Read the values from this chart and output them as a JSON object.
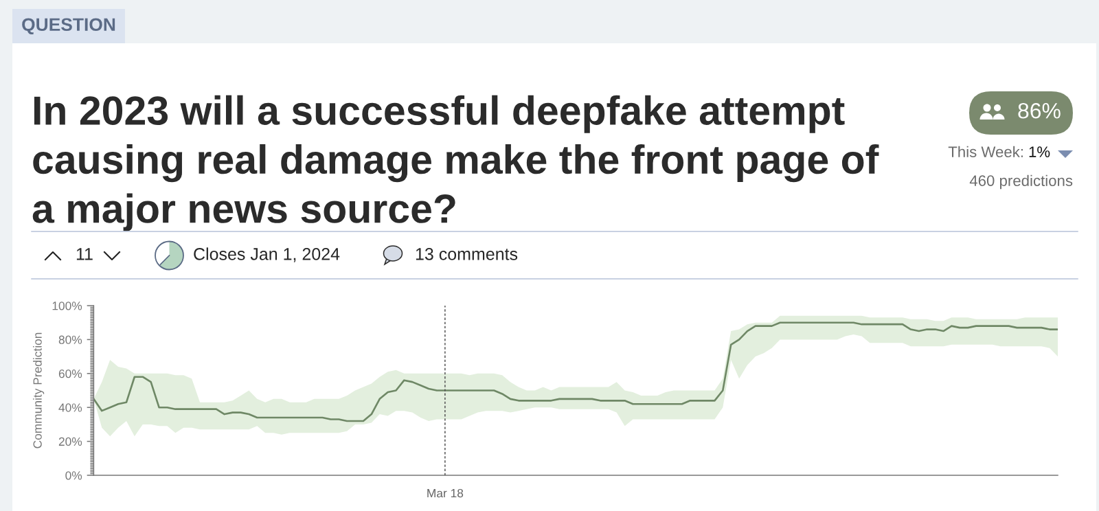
{
  "chart_data": {
    "type": "line",
    "title": "In 2023 will a successful deepfake attempt causing real damage make the front page of a major news source?",
    "ylabel": "Community Prediction",
    "annotations": [
      "QUESTION",
      "86%",
      "This Week:",
      "1%",
      "460 predictions",
      "11",
      "Closes Jan 1, 2024",
      "13 comments"
    ],
    "categories": [
      null,
      null,
      null,
      null,
      null,
      null,
      null,
      null,
      null,
      null,
      null,
      null,
      null,
      null,
      null,
      null,
      null,
      null,
      null,
      null,
      null,
      null,
      null,
      null,
      null,
      null,
      null,
      null,
      null,
      null,
      null,
      null,
      null,
      null,
      null,
      null,
      null,
      null,
      null,
      null,
      null,
      null,
      null,
      "Mar 18",
      null,
      null,
      null,
      null,
      null,
      null,
      null,
      null,
      null,
      null,
      null,
      null,
      null,
      null,
      null,
      null,
      null,
      null,
      null,
      null,
      null,
      null,
      null,
      null,
      null,
      null,
      null,
      null,
      null,
      null,
      null,
      null,
      null,
      null,
      null,
      null,
      null,
      null,
      null,
      null,
      null,
      null,
      null,
      null,
      null,
      null,
      null,
      null,
      null,
      null,
      null,
      null,
      null,
      null,
      null,
      null,
      null,
      null,
      null,
      null,
      null,
      null,
      null,
      null,
      null,
      null,
      null,
      null,
      null,
      null,
      null,
      null,
      null,
      null,
      null
    ],
    "series": [
      {
        "color": "#6f8866",
        "values": [
          45,
          38,
          40,
          42,
          43,
          58,
          58,
          55,
          40,
          40,
          39,
          39,
          39,
          39,
          39,
          39,
          36,
          37,
          37,
          36,
          34,
          34,
          34,
          34,
          34,
          34,
          34,
          34,
          34,
          33,
          33,
          32,
          32,
          32,
          36,
          45,
          49,
          50,
          56,
          55,
          53,
          51,
          50,
          50,
          50,
          50,
          50,
          50,
          50,
          50,
          48,
          45,
          44,
          44,
          44,
          44,
          44,
          45,
          45,
          45,
          45,
          45,
          44,
          44,
          44,
          44,
          42,
          42,
          42,
          42,
          42,
          42,
          42,
          44,
          44,
          44,
          44,
          50,
          77,
          80,
          85,
          88,
          88,
          88,
          90,
          90,
          90,
          90,
          90,
          90,
          90,
          90,
          90,
          90,
          89,
          89,
          89,
          89,
          89,
          89,
          86,
          85,
          86,
          86,
          85,
          88,
          87,
          87,
          88,
          88,
          88,
          88,
          88,
          87,
          87,
          87,
          87,
          86,
          86
        ],
        "lower": [
          45,
          28,
          23,
          28,
          32,
          23,
          30,
          30,
          29,
          29,
          25,
          28,
          28,
          27,
          27,
          27,
          27,
          27,
          27,
          27,
          29,
          25,
          25,
          24,
          25,
          25,
          25,
          25,
          25,
          25,
          25,
          26,
          30,
          30,
          31,
          36,
          35,
          38,
          38,
          37,
          34,
          32,
          33,
          33,
          33,
          33,
          35,
          37,
          38,
          38,
          38,
          37,
          38,
          39,
          40,
          40,
          40,
          39,
          39,
          39,
          39,
          39,
          39,
          39,
          37,
          29,
          33,
          33,
          33,
          33,
          33,
          33,
          33,
          33,
          33,
          33,
          33,
          40,
          68,
          57,
          65,
          70,
          72,
          75,
          80,
          80,
          80,
          80,
          80,
          80,
          80,
          80,
          82,
          83,
          82,
          78,
          78,
          78,
          78,
          78,
          76,
          76,
          76,
          76,
          76,
          77,
          77,
          77,
          77,
          77,
          77,
          76,
          76,
          76,
          76,
          76,
          76,
          75,
          70
        ],
        "upper": [
          45,
          55,
          68,
          64,
          63,
          60,
          60,
          60,
          60,
          60,
          59,
          59,
          57,
          43,
          43,
          43,
          43,
          44,
          47,
          50,
          45,
          43,
          45,
          45,
          43,
          43,
          43,
          45,
          45,
          45,
          45,
          47,
          50,
          52,
          54,
          58,
          61,
          62,
          60,
          60,
          60,
          60,
          60,
          60,
          60,
          60,
          59,
          60,
          60,
          60,
          59,
          55,
          52,
          50,
          50,
          52,
          50,
          52,
          52,
          52,
          52,
          52,
          52,
          52,
          55,
          50,
          49,
          47,
          47,
          47,
          49,
          50,
          50,
          50,
          50,
          50,
          50,
          57,
          85,
          86,
          89,
          90,
          90,
          90,
          94,
          94,
          94,
          94,
          94,
          94,
          94,
          94,
          94,
          94,
          94,
          93,
          93,
          93,
          93,
          93,
          92,
          92,
          92,
          91,
          91,
          93,
          93,
          93,
          92,
          92,
          92,
          92,
          92,
          92,
          93,
          93,
          93,
          93,
          93
        ]
      }
    ],
    "ylim": [
      0,
      100
    ],
    "yticks": [
      {
        "value": 0,
        "label": "0%"
      },
      {
        "value": 1,
        "label": null
      },
      {
        "value": 2,
        "label": null
      },
      {
        "value": 3,
        "label": null
      },
      {
        "value": 4,
        "label": null
      },
      {
        "value": 5,
        "label": null
      },
      {
        "value": 6,
        "label": null
      },
      {
        "value": 7,
        "label": null
      },
      {
        "value": 8,
        "label": null
      },
      {
        "value": 9,
        "label": null
      },
      {
        "value": 10,
        "label": null
      },
      {
        "value": 11,
        "label": null
      },
      {
        "value": 12,
        "label": null
      },
      {
        "value": 13,
        "label": null
      },
      {
        "value": 14,
        "label": null
      },
      {
        "value": 15,
        "label": null
      },
      {
        "value": 16,
        "label": null
      },
      {
        "value": 17,
        "label": null
      },
      {
        "value": 18,
        "label": null
      },
      {
        "value": 19,
        "label": null
      },
      {
        "value": 20,
        "label": "20%"
      },
      {
        "value": 21,
        "label": null
      },
      {
        "value": 22,
        "label": null
      },
      {
        "value": 23,
        "label": null
      },
      {
        "value": 24,
        "label": null
      },
      {
        "value": 25,
        "label": null
      },
      {
        "value": 26,
        "label": null
      },
      {
        "value": 27,
        "label": null
      },
      {
        "value": 28,
        "label": null
      },
      {
        "value": 29,
        "label": null
      },
      {
        "value": 30,
        "label": null
      },
      {
        "value": 31,
        "label": null
      },
      {
        "value": 32,
        "label": null
      },
      {
        "value": 33,
        "label": null
      },
      {
        "value": 34,
        "label": null
      },
      {
        "value": 35,
        "label": null
      },
      {
        "value": 36,
        "label": null
      },
      {
        "value": 37,
        "label": null
      },
      {
        "value": 38,
        "label": null
      },
      {
        "value": 39,
        "label": null
      },
      {
        "value": 40,
        "label": "40%"
      },
      {
        "value": 41,
        "label": null
      },
      {
        "value": 42,
        "label": null
      },
      {
        "value": 43,
        "label": null
      },
      {
        "value": 44,
        "label": null
      },
      {
        "value": 45,
        "label": null
      },
      {
        "value": 46,
        "label": null
      },
      {
        "value": 47,
        "label": null
      },
      {
        "value": 48,
        "label": null
      },
      {
        "value": 49,
        "label": null
      },
      {
        "value": 50,
        "label": null
      },
      {
        "value": 51,
        "label": null
      },
      {
        "value": 52,
        "label": null
      },
      {
        "value": 53,
        "label": null
      },
      {
        "value": 54,
        "label": null
      },
      {
        "value": 55,
        "label": null
      },
      {
        "value": 56,
        "label": null
      },
      {
        "value": 57,
        "label": null
      },
      {
        "value": 58,
        "label": null
      },
      {
        "value": 59,
        "label": null
      },
      {
        "value": 60,
        "label": "60%"
      },
      {
        "value": 61,
        "label": null
      },
      {
        "value": 62,
        "label": null
      },
      {
        "value": 63,
        "label": null
      },
      {
        "value": 64,
        "label": null
      },
      {
        "value": 65,
        "label": null
      },
      {
        "value": 66,
        "label": null
      },
      {
        "value": 67,
        "label": null
      },
      {
        "value": 68,
        "label": null
      },
      {
        "value": 69,
        "label": null
      },
      {
        "value": 70,
        "label": null
      },
      {
        "value": 71,
        "label": null
      },
      {
        "value": 72,
        "label": null
      },
      {
        "value": 73,
        "label": null
      },
      {
        "value": 74,
        "label": null
      },
      {
        "value": 75,
        "label": null
      },
      {
        "value": 76,
        "label": null
      },
      {
        "value": 77,
        "label": null
      },
      {
        "value": 78,
        "label": null
      },
      {
        "value": 79,
        "label": null
      },
      {
        "value": 80,
        "label": "80%"
      },
      {
        "value": 81,
        "label": null
      },
      {
        "value": 82,
        "label": null
      },
      {
        "value": 83,
        "label": null
      },
      {
        "value": 84,
        "label": null
      },
      {
        "value": 85,
        "label": null
      },
      {
        "value": 86,
        "label": null
      },
      {
        "value": 87,
        "label": null
      },
      {
        "value": 88,
        "label": null
      },
      {
        "value": 89,
        "label": null
      },
      {
        "value": 90,
        "label": null
      },
      {
        "value": 91,
        "label": null
      },
      {
        "value": 92,
        "label": null
      },
      {
        "value": 93,
        "label": null
      },
      {
        "value": 94,
        "label": null
      },
      {
        "value": 95,
        "label": null
      },
      {
        "value": 96,
        "label": null
      },
      {
        "value": 97,
        "label": null
      },
      {
        "value": 98,
        "label": null
      },
      {
        "value": 99,
        "label": null
      },
      {
        "value": 100,
        "label": "100%"
      }
    ],
    "ref_lines": [
      {
        "axis": "x",
        "value": "Mar 18",
        "color": "#555555",
        "line_style": "dashed"
      }
    ],
    "grid": false
  }
}
